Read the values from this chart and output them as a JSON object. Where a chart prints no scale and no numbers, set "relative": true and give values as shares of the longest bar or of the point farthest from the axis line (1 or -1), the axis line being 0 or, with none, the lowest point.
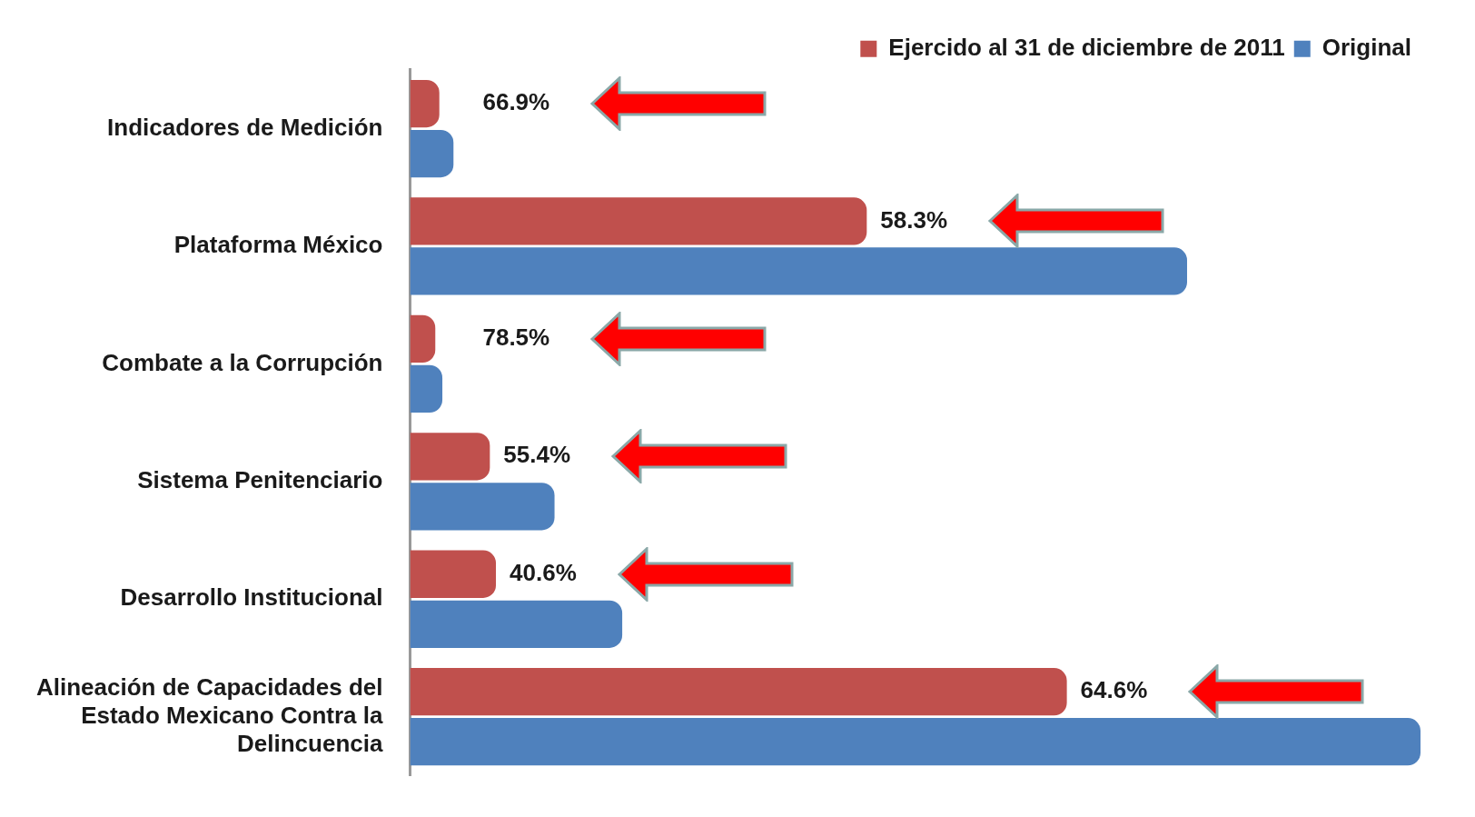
{
  "chart_data": {
    "type": "bar",
    "orientation": "horizontal",
    "relative": true,
    "legend": "top right",
    "grid": false,
    "categories": [
      "Indicadores de Medición",
      "Plataforma México",
      "Combate a la Corrupción",
      "Sistema Penitenciario",
      "Desarrollo Institucional",
      "Alineación de Capacidades del Estado Mexicano Contra la Delincuencia"
    ],
    "series": [
      {
        "name": "Ejercido al 31 de diciembre de 2011",
        "color": "#c0504d",
        "values": [
          0.029,
          0.452,
          0.025,
          0.079,
          0.085,
          0.65
        ]
      },
      {
        "name": "Original",
        "color": "#4f81bd",
        "values": [
          0.043,
          0.769,
          0.032,
          0.143,
          0.21,
          1
        ]
      }
    ],
    "annotations": [
      "66.9%",
      "58.3%",
      "78.5%",
      "55.4%",
      "40.6%",
      "64.6%"
    ]
  }
}
